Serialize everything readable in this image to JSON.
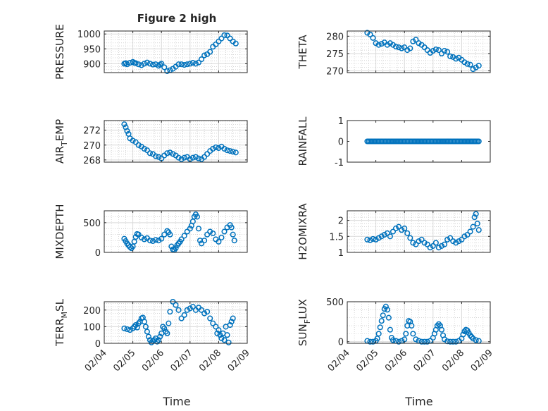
{
  "figure": {
    "title": "Figure 2 high",
    "xlabel": "Time",
    "x_tick_labels": [
      "02/04",
      "02/05",
      "02/06",
      "02/07",
      "02/08",
      "02/09"
    ]
  },
  "colors": {
    "marker": "#0072BD",
    "axis": "#262626",
    "grid": "#d9d9d9",
    "grid_minor": "#bdbdbd"
  },
  "chart_data": [
    {
      "type": "scatter",
      "ylabel": "PRESSURE",
      "ylabel_sub": "",
      "ylabel_after": "",
      "ylim": [
        870,
        1010
      ],
      "yticks": [
        900,
        950,
        1000
      ],
      "grid": true,
      "x": [
        4.7,
        4.75,
        4.8,
        4.9,
        5.0,
        5.05,
        5.1,
        5.2,
        5.3,
        5.4,
        5.5,
        5.6,
        5.7,
        5.8,
        5.9,
        5.95,
        6.0,
        6.1,
        6.2,
        6.3,
        6.4,
        6.5,
        6.6,
        6.7,
        6.8,
        6.9,
        7.0,
        7.1,
        7.2,
        7.3,
        7.4,
        7.5,
        7.6,
        7.7,
        7.8,
        7.9,
        8.0,
        8.1,
        8.2,
        8.3,
        8.4,
        8.5,
        8.6
      ],
      "values": [
        900,
        902,
        898,
        903,
        906,
        903,
        902,
        898,
        895,
        900,
        904,
        900,
        897,
        898,
        893,
        897,
        900,
        888,
        875,
        878,
        883,
        890,
        898,
        898,
        896,
        898,
        900,
        903,
        900,
        904,
        915,
        928,
        932,
        940,
        957,
        965,
        975,
        985,
        996,
        995,
        985,
        975,
        968
      ]
    },
    {
      "type": "scatter",
      "ylabel": "THETA",
      "ylabel_sub": "",
      "ylabel_after": "",
      "ylim": [
        269.5,
        281.5
      ],
      "yticks": [
        270,
        275,
        280
      ],
      "grid": true,
      "x": [
        4.7,
        4.8,
        4.9,
        5.0,
        5.1,
        5.2,
        5.3,
        5.4,
        5.5,
        5.6,
        5.7,
        5.8,
        5.9,
        6.0,
        6.1,
        6.2,
        6.3,
        6.4,
        6.5,
        6.6,
        6.7,
        6.8,
        6.9,
        7.0,
        7.1,
        7.2,
        7.3,
        7.4,
        7.5,
        7.6,
        7.7,
        7.8,
        7.9,
        8.0,
        8.1,
        8.2,
        8.3,
        8.4,
        8.5,
        8.6
      ],
      "values": [
        281,
        280.5,
        279.5,
        278,
        277.5,
        277.8,
        278.2,
        277.5,
        278,
        277.5,
        277,
        276.8,
        276.5,
        276.8,
        276,
        276.5,
        278.5,
        279,
        278,
        277.5,
        276.8,
        276,
        275.2,
        275.8,
        276.2,
        276,
        275,
        275.8,
        275.5,
        274.2,
        274,
        273.5,
        273.8,
        273.2,
        272.5,
        272,
        271.8,
        270.5,
        271,
        271.5
      ]
    },
    {
      "type": "scatter",
      "ylabel": "AIR",
      "ylabel_sub": "T",
      "ylabel_after": "EMP",
      "ylim": [
        267.7,
        273.3
      ],
      "yticks": [
        268,
        270,
        272
      ],
      "grid": true,
      "x": [
        4.7,
        4.75,
        4.8,
        4.85,
        4.9,
        5.0,
        5.1,
        5.2,
        5.3,
        5.4,
        5.5,
        5.6,
        5.7,
        5.8,
        5.9,
        6.0,
        6.1,
        6.2,
        6.3,
        6.4,
        6.5,
        6.6,
        6.7,
        6.8,
        6.9,
        7.0,
        7.1,
        7.2,
        7.3,
        7.4,
        7.5,
        7.6,
        7.7,
        7.8,
        7.9,
        8.0,
        8.1,
        8.2,
        8.3,
        8.4,
        8.5,
        8.6
      ],
      "values": [
        272.8,
        272.4,
        271.9,
        271.5,
        270.9,
        270.6,
        270.4,
        270,
        269.8,
        269.5,
        269.3,
        268.9,
        268.8,
        268.5,
        268.4,
        268.2,
        268.6,
        268.9,
        269.0,
        268.8,
        268.6,
        268.3,
        268.1,
        268.3,
        268.4,
        268.1,
        268.3,
        268.4,
        268.2,
        268.1,
        268.4,
        268.8,
        269.2,
        269.5,
        269.7,
        269.6,
        269.8,
        269.5,
        269.3,
        269.2,
        269.1,
        269.0
      ]
    },
    {
      "type": "scatter",
      "ylabel": "RAINFALL",
      "ylabel_sub": "",
      "ylabel_after": "",
      "ylim": [
        -1,
        1
      ],
      "yticks": [
        -1,
        0,
        1
      ],
      "grid": false,
      "x": [
        4.7,
        4.75,
        4.8,
        4.85,
        4.9,
        4.95,
        5.0,
        5.05,
        5.1,
        5.15,
        5.2,
        5.25,
        5.3,
        5.35,
        5.4,
        5.45,
        5.5,
        5.55,
        5.6,
        5.65,
        5.7,
        5.75,
        5.8,
        5.85,
        5.9,
        5.95,
        6.0,
        6.05,
        6.1,
        6.15,
        6.2,
        6.25,
        6.3,
        6.35,
        6.4,
        6.45,
        6.5,
        6.55,
        6.6,
        6.65,
        6.7,
        6.75,
        6.8,
        6.85,
        6.9,
        6.95,
        7.0,
        7.05,
        7.1,
        7.15,
        7.2,
        7.25,
        7.3,
        7.35,
        7.4,
        7.45,
        7.5,
        7.55,
        7.6,
        7.65,
        7.7,
        7.75,
        7.8,
        7.85,
        7.9,
        7.95,
        8.0,
        8.05,
        8.1,
        8.15,
        8.2,
        8.25,
        8.3,
        8.35,
        8.4,
        8.45,
        8.5,
        8.55,
        8.6
      ],
      "values": [
        0,
        0,
        0,
        0,
        0,
        0,
        0,
        0,
        0,
        0,
        0,
        0,
        0,
        0,
        0,
        0,
        0,
        0,
        0,
        0,
        0,
        0,
        0,
        0,
        0,
        0,
        0,
        0,
        0,
        0,
        0,
        0,
        0,
        0,
        0,
        0,
        0,
        0,
        0,
        0,
        0,
        0,
        0,
        0,
        0,
        0,
        0,
        0,
        0,
        0,
        0,
        0,
        0,
        0,
        0,
        0,
        0,
        0,
        0,
        0,
        0,
        0,
        0,
        0,
        0,
        0,
        0,
        0,
        0,
        0,
        0,
        0,
        0,
        0,
        0,
        0,
        0,
        0,
        0
      ]
    },
    {
      "type": "scatter",
      "ylabel": "MIXDEPTH",
      "ylabel_sub": "",
      "ylabel_after": "",
      "ylim": [
        0,
        700
      ],
      "yticks": [
        0,
        500
      ],
      "grid": true,
      "x": [
        4.7,
        4.75,
        4.8,
        4.85,
        4.9,
        4.95,
        5.0,
        5.05,
        5.1,
        5.15,
        5.2,
        5.3,
        5.4,
        5.5,
        5.6,
        5.7,
        5.8,
        5.9,
        6.0,
        6.1,
        6.2,
        6.25,
        6.3,
        6.35,
        6.4,
        6.45,
        6.5,
        6.55,
        6.6,
        6.65,
        6.7,
        6.8,
        6.9,
        7.0,
        7.05,
        7.1,
        7.15,
        7.2,
        7.25,
        7.3,
        7.35,
        7.4,
        7.5,
        7.6,
        7.7,
        7.8,
        7.9,
        8.0,
        8.1,
        8.2,
        8.3,
        8.4,
        8.45,
        8.5,
        8.55
      ],
      "values": [
        230,
        190,
        150,
        120,
        90,
        70,
        100,
        180,
        260,
        310,
        300,
        250,
        220,
        240,
        200,
        190,
        210,
        200,
        230,
        300,
        360,
        340,
        300,
        100,
        50,
        40,
        70,
        120,
        150,
        180,
        220,
        280,
        350,
        400,
        450,
        520,
        600,
        640,
        600,
        400,
        200,
        150,
        200,
        300,
        350,
        320,
        220,
        180,
        250,
        350,
        420,
        460,
        420,
        300,
        200
      ]
    },
    {
      "type": "scatter",
      "ylabel": "H2OMIXRA",
      "ylabel_sub": "",
      "ylabel_after": "",
      "ylim": [
        1,
        2.3
      ],
      "yticks": [
        1,
        1.5,
        2
      ],
      "grid": true,
      "x": [
        4.7,
        4.8,
        4.9,
        5.0,
        5.1,
        5.2,
        5.3,
        5.4,
        5.5,
        5.6,
        5.7,
        5.8,
        5.9,
        6.0,
        6.1,
        6.2,
        6.3,
        6.4,
        6.5,
        6.6,
        6.7,
        6.8,
        6.9,
        7.0,
        7.1,
        7.2,
        7.3,
        7.4,
        7.5,
        7.6,
        7.7,
        7.8,
        7.9,
        8.0,
        8.1,
        8.2,
        8.3,
        8.4,
        8.45,
        8.5,
        8.55,
        8.6
      ],
      "values": [
        1.4,
        1.38,
        1.42,
        1.4,
        1.45,
        1.5,
        1.55,
        1.6,
        1.5,
        1.65,
        1.75,
        1.8,
        1.7,
        1.75,
        1.6,
        1.45,
        1.3,
        1.25,
        1.35,
        1.4,
        1.3,
        1.25,
        1.15,
        1.2,
        1.3,
        1.15,
        1.2,
        1.25,
        1.4,
        1.45,
        1.35,
        1.3,
        1.35,
        1.4,
        1.5,
        1.55,
        1.65,
        1.8,
        2.1,
        2.2,
        1.9,
        1.7
      ]
    },
    {
      "type": "scatter",
      "ylabel": "TERR",
      "ylabel_sub": "M",
      "ylabel_after": "SL",
      "ylim": [
        0,
        250
      ],
      "yticks": [
        0,
        100,
        200
      ],
      "grid": true,
      "x": [
        4.7,
        4.8,
        4.9,
        5.0,
        5.05,
        5.1,
        5.15,
        5.2,
        5.25,
        5.3,
        5.35,
        5.4,
        5.45,
        5.5,
        5.55,
        5.6,
        5.65,
        5.7,
        5.75,
        5.8,
        5.85,
        5.9,
        5.95,
        6.0,
        6.05,
        6.1,
        6.15,
        6.2,
        6.25,
        6.3,
        6.4,
        6.5,
        6.6,
        6.7,
        6.8,
        6.9,
        7.0,
        7.1,
        7.2,
        7.3,
        7.4,
        7.5,
        7.6,
        7.7,
        7.8,
        7.9,
        7.95,
        8.0,
        8.05,
        8.1,
        8.15,
        8.2,
        8.25,
        8.3,
        8.35,
        8.4,
        8.45,
        8.5
      ],
      "values": [
        90,
        85,
        80,
        90,
        100,
        110,
        95,
        120,
        130,
        150,
        155,
        130,
        100,
        70,
        40,
        20,
        5,
        15,
        20,
        30,
        10,
        20,
        40,
        60,
        100,
        90,
        70,
        60,
        120,
        190,
        250,
        230,
        200,
        150,
        170,
        200,
        210,
        220,
        200,
        215,
        200,
        180,
        190,
        150,
        120,
        100,
        60,
        80,
        50,
        30,
        60,
        20,
        100,
        50,
        5,
        110,
        130,
        150
      ]
    },
    {
      "type": "scatter",
      "ylabel": "SUN",
      "ylabel_sub": "F",
      "ylabel_after": "LUX",
      "ylim": [
        -20,
        500
      ],
      "yticks": [
        0,
        500
      ],
      "grid": true,
      "x": [
        4.7,
        4.8,
        4.9,
        5.0,
        5.05,
        5.1,
        5.15,
        5.2,
        5.25,
        5.3,
        5.35,
        5.4,
        5.45,
        5.5,
        5.55,
        5.6,
        5.7,
        5.8,
        5.9,
        6.0,
        6.05,
        6.1,
        6.15,
        6.2,
        6.25,
        6.3,
        6.4,
        6.5,
        6.6,
        6.7,
        6.8,
        6.9,
        7.0,
        7.05,
        7.1,
        7.15,
        7.2,
        7.25,
        7.3,
        7.35,
        7.4,
        7.5,
        7.6,
        7.7,
        7.8,
        7.9,
        8.0,
        8.05,
        8.1,
        8.15,
        8.2,
        8.25,
        8.3,
        8.35,
        8.4,
        8.5,
        8.6
      ],
      "values": [
        10,
        0,
        0,
        10,
        40,
        100,
        180,
        260,
        330,
        410,
        440,
        400,
        300,
        150,
        50,
        20,
        10,
        0,
        10,
        30,
        100,
        200,
        260,
        250,
        200,
        100,
        30,
        10,
        0,
        0,
        0,
        10,
        50,
        100,
        150,
        200,
        220,
        200,
        150,
        80,
        30,
        5,
        0,
        0,
        0,
        10,
        40,
        90,
        130,
        150,
        140,
        110,
        80,
        60,
        40,
        20,
        10
      ]
    }
  ]
}
